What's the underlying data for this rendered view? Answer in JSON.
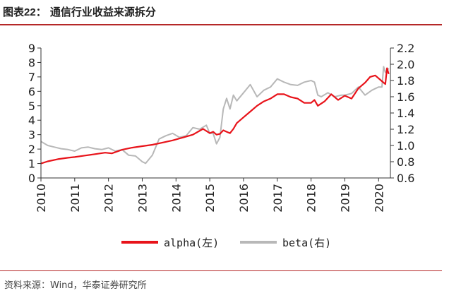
{
  "figure": {
    "title_prefix": "图表",
    "title_number": "22",
    "title_text": "：  通信行业收益来源拆分",
    "source": "资料来源：Wind，华泰证券研究所"
  },
  "colors": {
    "alpha": "#e8131a",
    "beta": "#b8b8b8",
    "title_rule": "#b52828",
    "axis": "#333333"
  },
  "chart_data": {
    "type": "line",
    "title": "",
    "x_type": "date",
    "xlim": [
      2010.0,
      2020.35
    ],
    "x_ticks": [
      "2010",
      "2011",
      "2012",
      "2013",
      "2014",
      "2015",
      "2016",
      "2017",
      "2018",
      "2019",
      "2020"
    ],
    "y_left": {
      "ylim": [
        0,
        9
      ],
      "ticks": [
        "0",
        "1",
        "2",
        "3",
        "4",
        "5",
        "6",
        "7",
        "8",
        "9"
      ]
    },
    "y_right": {
      "ylim": [
        0.6,
        2.2
      ],
      "ticks": [
        "0.6",
        "0.8",
        "1.0",
        "1.2",
        "1.4",
        "1.6",
        "1.8",
        "2.0",
        "2.2"
      ]
    },
    "legend_position": "bottom",
    "grid": false,
    "series": [
      {
        "name": "alpha(左)",
        "axis": "left",
        "color": "#e8131a",
        "x": [
          2010.0,
          2010.2,
          2010.5,
          2010.8,
          2011.0,
          2011.3,
          2011.6,
          2011.9,
          2012.1,
          2012.4,
          2012.7,
          2013.0,
          2013.3,
          2013.6,
          2013.9,
          2014.2,
          2014.5,
          2014.8,
          2015.0,
          2015.1,
          2015.2,
          2015.3,
          2015.4,
          2015.5,
          2015.6,
          2015.7,
          2015.8,
          2015.9,
          2016.0,
          2016.2,
          2016.4,
          2016.6,
          2016.8,
          2017.0,
          2017.2,
          2017.4,
          2017.6,
          2017.8,
          2018.0,
          2018.1,
          2018.2,
          2018.4,
          2018.6,
          2018.8,
          2019.0,
          2019.2,
          2019.4,
          2019.6,
          2019.75,
          2019.9,
          2020.0,
          2020.1,
          2020.2,
          2020.25,
          2020.3
        ],
        "values": [
          1.0,
          1.15,
          1.3,
          1.4,
          1.45,
          1.55,
          1.65,
          1.75,
          1.7,
          1.95,
          2.1,
          2.2,
          2.3,
          2.45,
          2.6,
          2.8,
          3.0,
          3.4,
          3.1,
          3.2,
          3.0,
          3.05,
          3.3,
          3.2,
          3.1,
          3.4,
          3.8,
          4.0,
          4.2,
          4.6,
          5.0,
          5.3,
          5.5,
          5.8,
          5.8,
          5.6,
          5.5,
          5.2,
          5.2,
          5.4,
          5.0,
          5.3,
          5.8,
          5.4,
          5.7,
          5.5,
          6.2,
          6.6,
          7.0,
          7.1,
          6.9,
          6.7,
          6.5,
          7.6,
          7.2
        ]
      },
      {
        "name": "beta(右)",
        "axis": "right",
        "color": "#b8b8b8",
        "x": [
          2010.0,
          2010.2,
          2010.4,
          2010.6,
          2010.8,
          2011.0,
          2011.2,
          2011.4,
          2011.6,
          2011.8,
          2012.0,
          2012.2,
          2012.4,
          2012.6,
          2012.8,
          2013.0,
          2013.1,
          2013.3,
          2013.5,
          2013.7,
          2013.9,
          2014.1,
          2014.3,
          2014.5,
          2014.7,
          2014.9,
          2015.0,
          2015.1,
          2015.2,
          2015.3,
          2015.4,
          2015.5,
          2015.6,
          2015.7,
          2015.8,
          2016.0,
          2016.2,
          2016.4,
          2016.6,
          2016.8,
          2017.0,
          2017.2,
          2017.4,
          2017.6,
          2017.8,
          2018.0,
          2018.1,
          2018.2,
          2018.3,
          2018.5,
          2018.7,
          2018.9,
          2019.0,
          2019.2,
          2019.4,
          2019.6,
          2019.8,
          2020.0,
          2020.1,
          2020.15,
          2020.2,
          2020.3
        ],
        "values": [
          1.05,
          1.0,
          0.98,
          0.96,
          0.95,
          0.93,
          0.97,
          0.98,
          0.96,
          0.95,
          0.97,
          0.93,
          0.95,
          0.88,
          0.87,
          0.8,
          0.78,
          0.88,
          1.08,
          1.12,
          1.15,
          1.1,
          1.12,
          1.22,
          1.2,
          1.25,
          1.15,
          1.15,
          1.02,
          1.1,
          1.45,
          1.58,
          1.45,
          1.62,
          1.55,
          1.65,
          1.75,
          1.6,
          1.68,
          1.72,
          1.82,
          1.78,
          1.75,
          1.74,
          1.78,
          1.8,
          1.78,
          1.62,
          1.6,
          1.65,
          1.6,
          1.62,
          1.62,
          1.64,
          1.72,
          1.62,
          1.68,
          1.72,
          1.72,
          1.97,
          1.9,
          1.95
        ]
      }
    ]
  }
}
